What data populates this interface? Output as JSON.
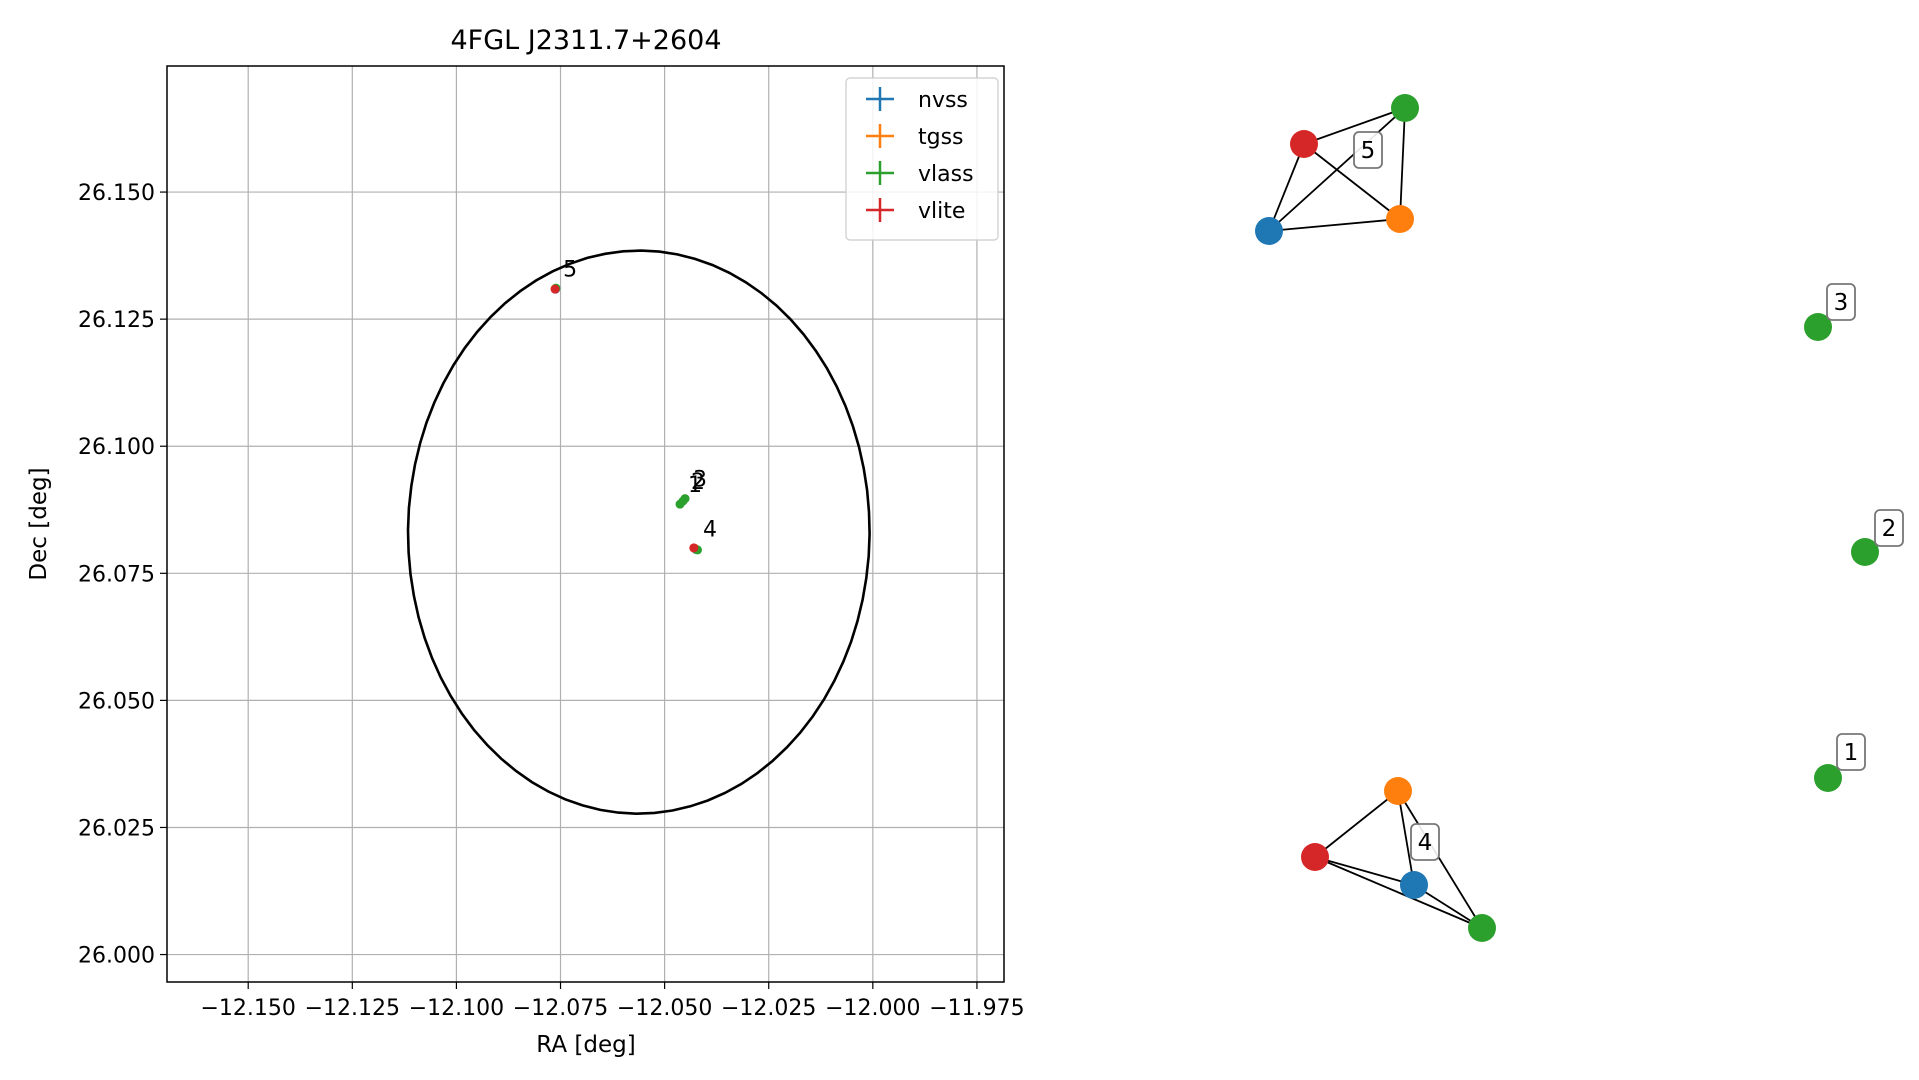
{
  "chart_data": [
    {
      "type": "scatter",
      "title": "4FGL J2311.7+2604",
      "xlabel": "RA [deg]",
      "ylabel": "Dec [deg]",
      "xlim": [
        -12.1695,
        -11.9685
      ],
      "ylim": [
        25.9946,
        26.1748
      ],
      "xticks": [
        -12.15,
        -12.125,
        -12.1,
        -12.075,
        -12.05,
        -12.025,
        -12.0,
        -11.975
      ],
      "xtick_labels": [
        "−12.150",
        "−12.125",
        "−12.100",
        "−12.075",
        "−12.050",
        "−12.025",
        "−12.000",
        "−11.975"
      ],
      "yticks": [
        26.0,
        26.025,
        26.05,
        26.075,
        26.1,
        26.125,
        26.15
      ],
      "ytick_labels": [
        "26.000",
        "26.025",
        "26.050",
        "26.075",
        "26.100",
        "26.125",
        "26.150"
      ],
      "grid": true,
      "legend_placement": "top-right",
      "series": [
        {
          "name": "nvss",
          "color": "#1f77b4",
          "points": [
            [
              -12.0762,
              26.1309
            ],
            [
              -12.0425,
              26.0797
            ]
          ]
        },
        {
          "name": "tgss",
          "color": "#ff7f0e",
          "points": [
            [
              -12.0763,
              26.131
            ],
            [
              -12.0427,
              26.0799
            ]
          ]
        },
        {
          "name": "vlass",
          "color": "#2ca02c",
          "points": [
            [
              -12.0761,
              26.1311
            ],
            [
              -12.0421,
              26.0796
            ],
            [
              -12.0463,
              26.0886
            ],
            [
              -12.0456,
              26.0892
            ],
            [
              -12.0451,
              26.0897
            ]
          ]
        },
        {
          "name": "vlite",
          "color": "#d62728",
          "points": [
            [
              -12.0763,
              26.1309
            ],
            [
              -12.043,
              26.08
            ]
          ]
        }
      ],
      "annotations": [
        {
          "text": "5",
          "x": -12.0763,
          "y": 26.131
        },
        {
          "text": "4",
          "x": -12.0427,
          "y": 26.0799
        },
        {
          "text": "1",
          "x": -12.0463,
          "y": 26.0886
        },
        {
          "text": "2",
          "x": -12.0456,
          "y": 26.0892
        },
        {
          "text": "3",
          "x": -12.0451,
          "y": 26.0897
        }
      ],
      "ellipse": {
        "center": [
          -12.0562,
          26.0831
        ],
        "semi_axes": [
          0.0555,
          0.0553
        ],
        "angle_deg": 40,
        "color": "#000000"
      }
    },
    {
      "type": "network",
      "clusters": [
        {
          "label": "5",
          "nodes": [
            {
              "id": "red",
              "color": "#d62728"
            },
            {
              "id": "green",
              "color": "#2ca02c"
            },
            {
              "id": "orange",
              "color": "#ff7f0e"
            },
            {
              "id": "blue",
              "color": "#1f77b4"
            }
          ],
          "edges": [
            [
              "red",
              "green"
            ],
            [
              "red",
              "orange"
            ],
            [
              "red",
              "blue"
            ],
            [
              "green",
              "orange"
            ],
            [
              "green",
              "blue"
            ],
            [
              "blue",
              "orange"
            ]
          ]
        },
        {
          "label": "4",
          "nodes": [
            {
              "id": "orange",
              "color": "#ff7f0e"
            },
            {
              "id": "red",
              "color": "#d62728"
            },
            {
              "id": "blue",
              "color": "#1f77b4"
            },
            {
              "id": "green",
              "color": "#2ca02c"
            }
          ],
          "edges": [
            [
              "orange",
              "red"
            ],
            [
              "orange",
              "blue"
            ],
            [
              "orange",
              "green"
            ],
            [
              "red",
              "blue"
            ],
            [
              "red",
              "green"
            ],
            [
              "blue",
              "green"
            ]
          ]
        },
        {
          "label": "3",
          "nodes": [
            {
              "id": "green",
              "color": "#2ca02c"
            }
          ],
          "edges": []
        },
        {
          "label": "2",
          "nodes": [
            {
              "id": "green",
              "color": "#2ca02c"
            }
          ],
          "edges": []
        },
        {
          "label": "1",
          "nodes": [
            {
              "id": "green",
              "color": "#2ca02c"
            }
          ],
          "edges": []
        }
      ]
    }
  ]
}
